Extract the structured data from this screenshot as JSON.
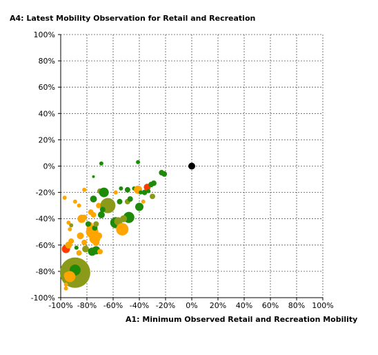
{
  "chart_data": {
    "type": "scatter",
    "title": "A4: Latest Mobility Observation for Retail and Recreation",
    "xlabel": "A1: Minimum Observed Retail and Recreation Mobility",
    "ylabel": "",
    "xlim": [
      -100,
      100
    ],
    "ylim": [
      -100,
      100
    ],
    "x_ticks": [
      "-100%",
      "-80%",
      "-60%",
      "-40%",
      "-20%",
      "0%",
      "20%",
      "40%",
      "60%",
      "80%",
      "100%"
    ],
    "y_ticks": [
      "100%",
      "80%",
      "60%",
      "40%",
      "20%",
      "0%",
      "-20%",
      "-40%",
      "-60%",
      "-80%",
      "-100%"
    ],
    "grid": true,
    "colors": {
      "green": "#1e8a0a",
      "olive": "#8c9a1a",
      "orange": "#ffa500",
      "red": "#ff3b00",
      "black": "#000000"
    },
    "points": [
      {
        "x": 0,
        "y": 0,
        "size": 5,
        "color": "black"
      },
      {
        "x": -89,
        "y": -81,
        "size": 22,
        "color": "olive"
      },
      {
        "x": -90,
        "y": -80,
        "size": 14,
        "color": "olive"
      },
      {
        "x": -89,
        "y": -79,
        "size": 8,
        "color": "green"
      },
      {
        "x": -93,
        "y": -84,
        "size": 8,
        "color": "orange"
      },
      {
        "x": -95,
        "y": -83,
        "size": 5,
        "color": "orange"
      },
      {
        "x": -96,
        "y": -90,
        "size": 3,
        "color": "orange"
      },
      {
        "x": -96,
        "y": -93,
        "size": 3,
        "color": "orange"
      },
      {
        "x": -96,
        "y": -63,
        "size": 6,
        "color": "red"
      },
      {
        "x": -94,
        "y": -60,
        "size": 5,
        "color": "orange"
      },
      {
        "x": -92,
        "y": -57,
        "size": 4,
        "color": "orange"
      },
      {
        "x": -93,
        "y": -48,
        "size": 3,
        "color": "orange"
      },
      {
        "x": -94,
        "y": -43,
        "size": 3,
        "color": "orange"
      },
      {
        "x": -92,
        "y": -45,
        "size": 3,
        "color": "olive"
      },
      {
        "x": -97,
        "y": -24,
        "size": 3,
        "color": "orange"
      },
      {
        "x": -89,
        "y": -27,
        "size": 3,
        "color": "orange"
      },
      {
        "x": -86,
        "y": -30,
        "size": 3,
        "color": "orange"
      },
      {
        "x": -84,
        "y": -40,
        "size": 6,
        "color": "orange"
      },
      {
        "x": -82,
        "y": -39,
        "size": 4,
        "color": "orange"
      },
      {
        "x": -82,
        "y": -18,
        "size": 3,
        "color": "orange"
      },
      {
        "x": -85,
        "y": -53,
        "size": 5,
        "color": "orange"
      },
      {
        "x": -82,
        "y": -58,
        "size": 4,
        "color": "orange"
      },
      {
        "x": -86,
        "y": -66,
        "size": 4,
        "color": "orange"
      },
      {
        "x": -88,
        "y": -62,
        "size": 3,
        "color": "green"
      },
      {
        "x": -81,
        "y": -63,
        "size": 5,
        "color": "olive"
      },
      {
        "x": -78,
        "y": -45,
        "size": 5,
        "color": "orange"
      },
      {
        "x": -77,
        "y": -35,
        "size": 4,
        "color": "orange"
      },
      {
        "x": -79,
        "y": -44,
        "size": 4,
        "color": "green"
      },
      {
        "x": -76,
        "y": -50,
        "size": 9,
        "color": "orange"
      },
      {
        "x": -74,
        "y": -55,
        "size": 8,
        "color": "orange"
      },
      {
        "x": -73,
        "y": -58,
        "size": 5,
        "color": "orange"
      },
      {
        "x": -71,
        "y": -53,
        "size": 5,
        "color": "orange"
      },
      {
        "x": -74,
        "y": -47,
        "size": 4,
        "color": "green"
      },
      {
        "x": -73,
        "y": -44,
        "size": 4,
        "color": "olive"
      },
      {
        "x": -76,
        "y": -65,
        "size": 6,
        "color": "green"
      },
      {
        "x": -73,
        "y": -64,
        "size": 6,
        "color": "green"
      },
      {
        "x": -70,
        "y": -65,
        "size": 4,
        "color": "orange"
      },
      {
        "x": -75,
        "y": -25,
        "size": 5,
        "color": "green"
      },
      {
        "x": -75,
        "y": -37,
        "size": 4,
        "color": "orange"
      },
      {
        "x": -71,
        "y": -30,
        "size": 4,
        "color": "orange"
      },
      {
        "x": -69,
        "y": -37,
        "size": 5,
        "color": "green"
      },
      {
        "x": -70,
        "y": -19,
        "size": 4,
        "color": "olive"
      },
      {
        "x": -67,
        "y": -20,
        "size": 7,
        "color": "green"
      },
      {
        "x": -64,
        "y": -30,
        "size": 11,
        "color": "olive"
      },
      {
        "x": -68,
        "y": -33,
        "size": 4,
        "color": "green"
      },
      {
        "x": -69,
        "y": 2,
        "size": 3,
        "color": "green"
      },
      {
        "x": -75,
        "y": -8,
        "size": 2,
        "color": "green"
      },
      {
        "x": -58,
        "y": -43,
        "size": 8,
        "color": "green"
      },
      {
        "x": -56,
        "y": -42,
        "size": 6,
        "color": "olive"
      },
      {
        "x": -53,
        "y": -48,
        "size": 9,
        "color": "orange"
      },
      {
        "x": -48,
        "y": -39,
        "size": 8,
        "color": "green"
      },
      {
        "x": -52,
        "y": -40,
        "size": 5,
        "color": "olive"
      },
      {
        "x": -55,
        "y": -27,
        "size": 4,
        "color": "green"
      },
      {
        "x": -49,
        "y": -27,
        "size": 4,
        "color": "olive"
      },
      {
        "x": -47,
        "y": -25,
        "size": 4,
        "color": "green"
      },
      {
        "x": -58,
        "y": -20,
        "size": 3,
        "color": "orange"
      },
      {
        "x": -54,
        "y": -17,
        "size": 3,
        "color": "green"
      },
      {
        "x": -49,
        "y": -18,
        "size": 4,
        "color": "green"
      },
      {
        "x": -44,
        "y": -17,
        "size": 3,
        "color": "green"
      },
      {
        "x": -41,
        "y": -18,
        "size": 6,
        "color": "orange"
      },
      {
        "x": -39,
        "y": -20,
        "size": 3,
        "color": "green"
      },
      {
        "x": -36,
        "y": -20,
        "size": 4,
        "color": "green"
      },
      {
        "x": -40,
        "y": -31,
        "size": 6,
        "color": "green"
      },
      {
        "x": -37,
        "y": -27,
        "size": 3,
        "color": "orange"
      },
      {
        "x": -34,
        "y": -16,
        "size": 5,
        "color": "red"
      },
      {
        "x": -30,
        "y": -23,
        "size": 4,
        "color": "olive"
      },
      {
        "x": -33,
        "y": -19,
        "size": 3,
        "color": "green"
      },
      {
        "x": -31,
        "y": -14,
        "size": 4,
        "color": "green"
      },
      {
        "x": -29,
        "y": -13,
        "size": 4,
        "color": "green"
      },
      {
        "x": -23,
        "y": -5,
        "size": 4,
        "color": "green"
      },
      {
        "x": -21,
        "y": -6,
        "size": 4,
        "color": "green"
      },
      {
        "x": -41,
        "y": 3,
        "size": 3,
        "color": "green"
      }
    ]
  }
}
